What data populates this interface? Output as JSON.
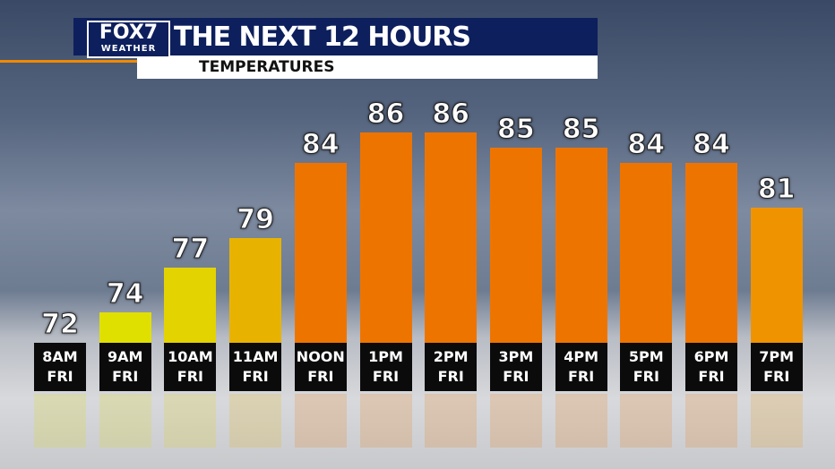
{
  "logo": {
    "name": "FOX7",
    "tag": "WEATHER"
  },
  "chart_data": {
    "type": "bar",
    "title": "THE NEXT 12 HOURS",
    "subtitle": "TEMPERATURES",
    "categories": [
      "8AM FRI",
      "9AM FRI",
      "10AM FRI",
      "11AM FRI",
      "NOON FRI",
      "1PM FRI",
      "2PM FRI",
      "3PM FRI",
      "4PM FRI",
      "5PM FRI",
      "6PM FRI",
      "7PM FRI"
    ],
    "values": [
      72,
      74,
      77,
      79,
      84,
      86,
      86,
      85,
      85,
      84,
      84,
      81
    ],
    "colors": [
      "#e0e000",
      "#e0e000",
      "#e3d300",
      "#e8b300",
      "#ee7400",
      "#ee7400",
      "#ee7400",
      "#ee7400",
      "#ee7400",
      "#ee7400",
      "#ee7400",
      "#ef9300"
    ],
    "ylim": [
      72,
      90
    ]
  }
}
